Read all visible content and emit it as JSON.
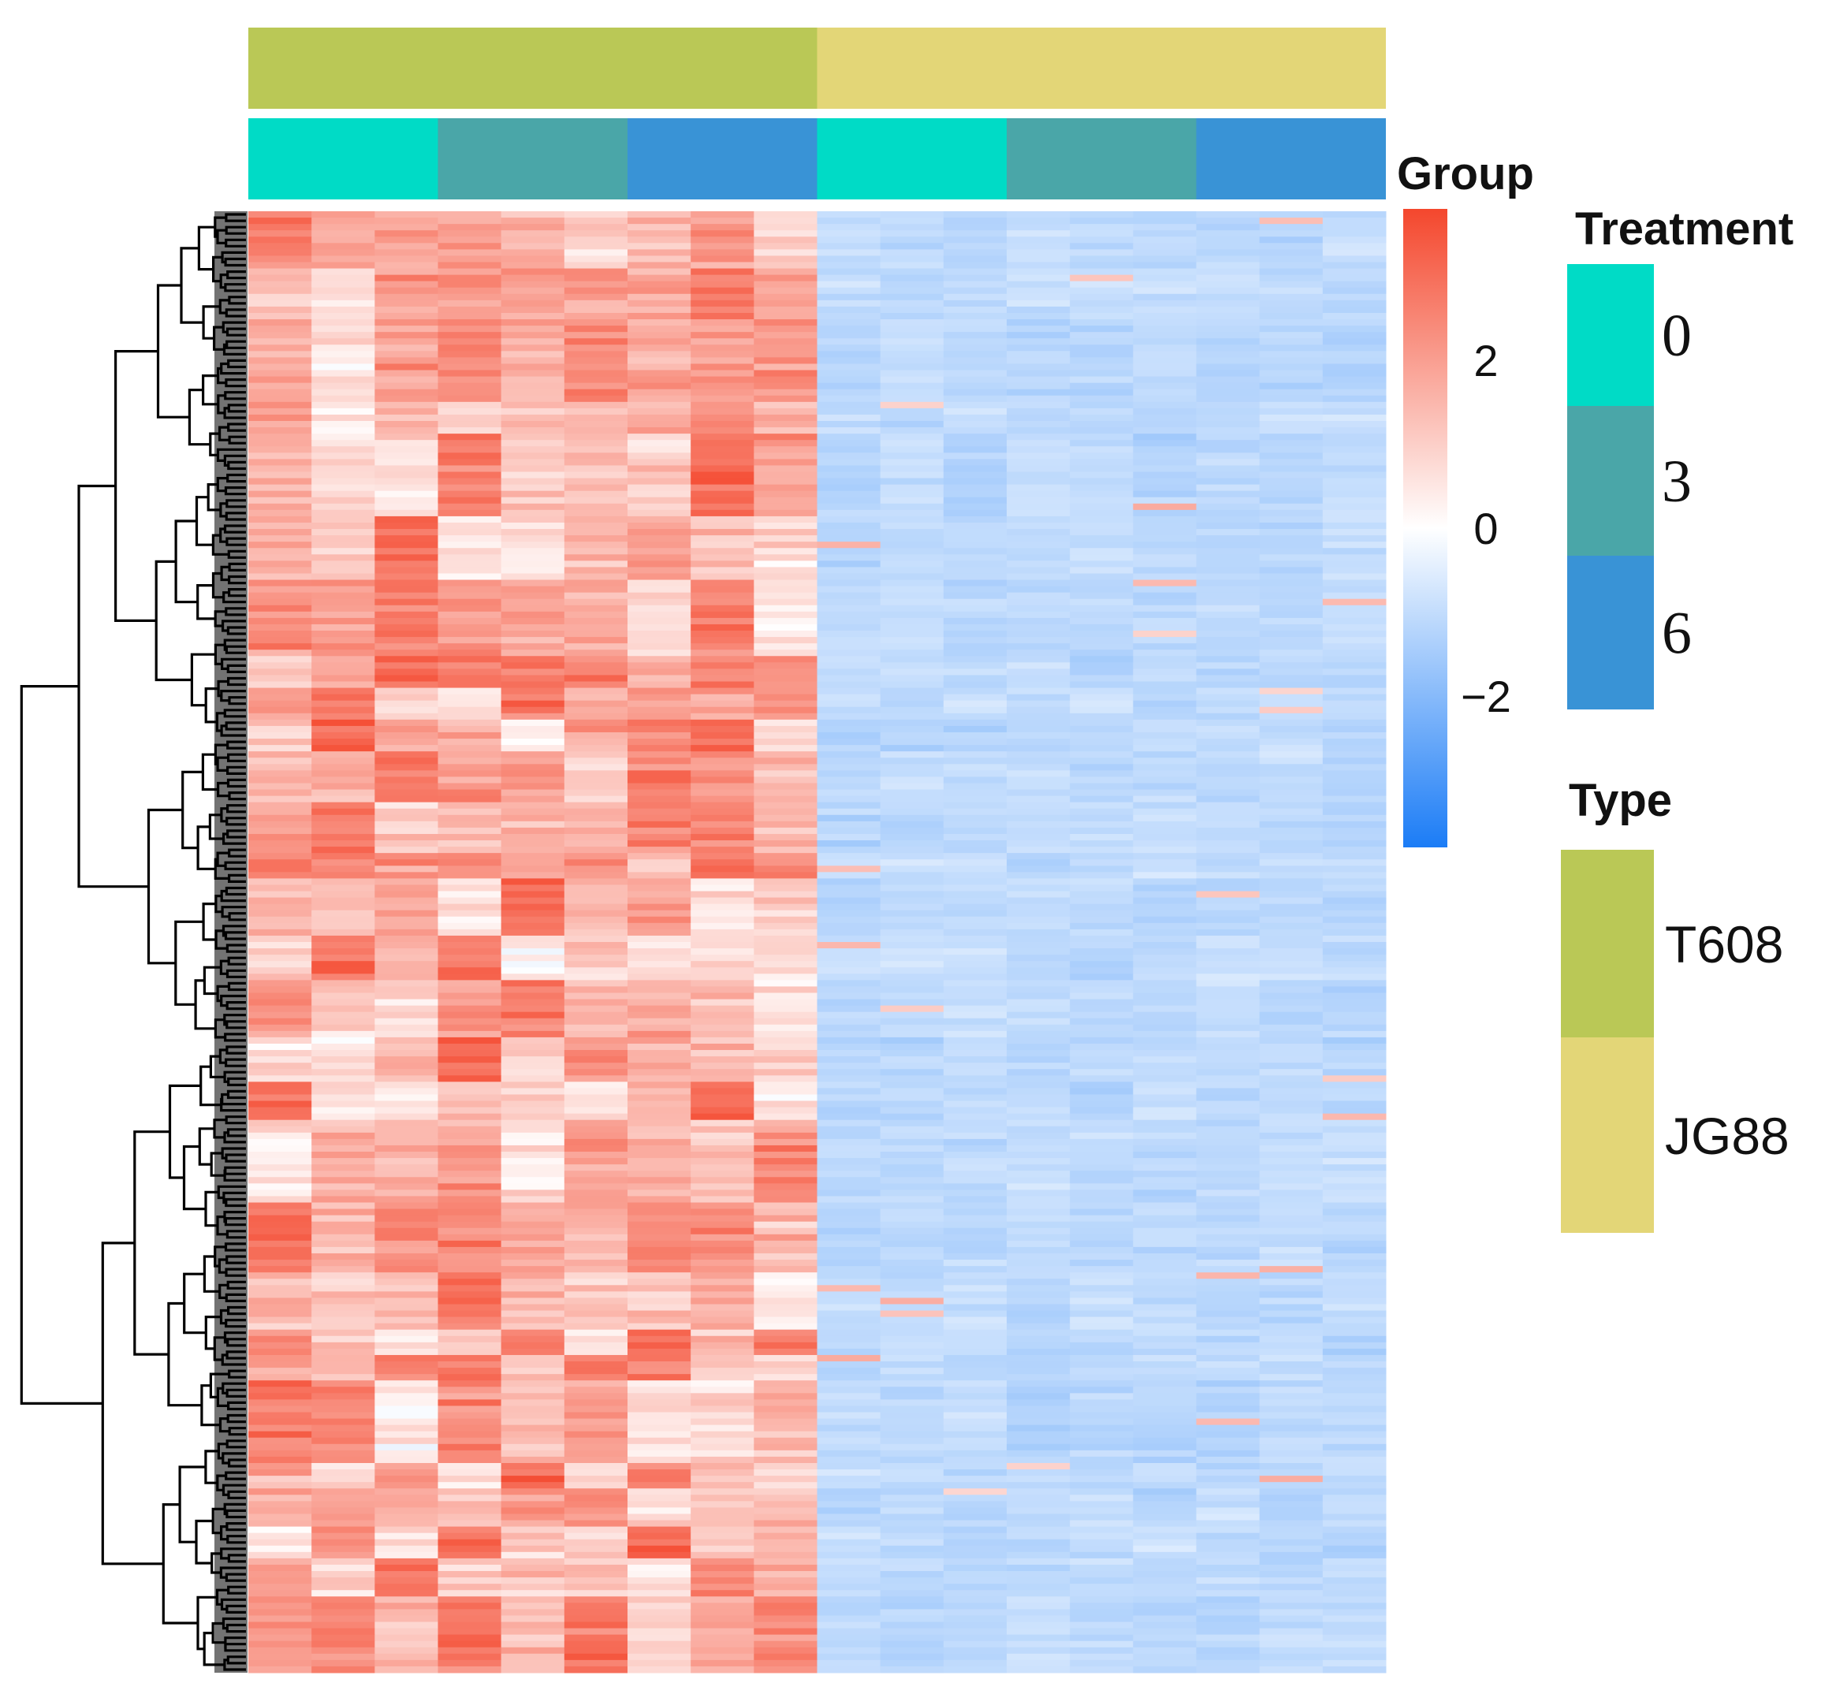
{
  "chart_data": {
    "type": "heatmap",
    "columns": 18,
    "rows_approx": 230,
    "column_annotations": {
      "type": [
        "T608",
        "T608",
        "T608",
        "T608",
        "T608",
        "T608",
        "T608",
        "T608",
        "T608",
        "JG88",
        "JG88",
        "JG88",
        "JG88",
        "JG88",
        "JG88",
        "JG88",
        "JG88",
        "JG88"
      ],
      "treatment": [
        "0",
        "0",
        "0",
        "3",
        "3",
        "3",
        "6",
        "6",
        "6",
        "0",
        "0",
        "0",
        "3",
        "3",
        "3",
        "6",
        "6",
        "6"
      ]
    },
    "row_dendrogram": true,
    "color_scale": {
      "title": "Group",
      "range": [
        -3.8,
        3.8
      ],
      "ticks": [
        "2",
        "0",
        "−2"
      ],
      "tick_values": [
        2,
        0,
        -2
      ],
      "low_color": "#1b7cf6",
      "mid_color": "#ffffff",
      "high_color": "#f4472d"
    },
    "legend_treatment": {
      "title": "Treatment",
      "levels": [
        {
          "label": "0",
          "color": "#00dbc6"
        },
        {
          "label": "3",
          "color": "#4aa6a8"
        },
        {
          "label": "6",
          "color": "#3993d6"
        }
      ]
    },
    "legend_type": {
      "title": "Type",
      "levels": [
        {
          "label": "T608",
          "color": "#bac856"
        },
        {
          "label": "JG88",
          "color": "#e3d677"
        }
      ]
    },
    "pattern": "T608 columns (1-9) mostly positive z-scores (red); JG88 columns (10-18) uniformly negative z-scores (light blue)"
  }
}
